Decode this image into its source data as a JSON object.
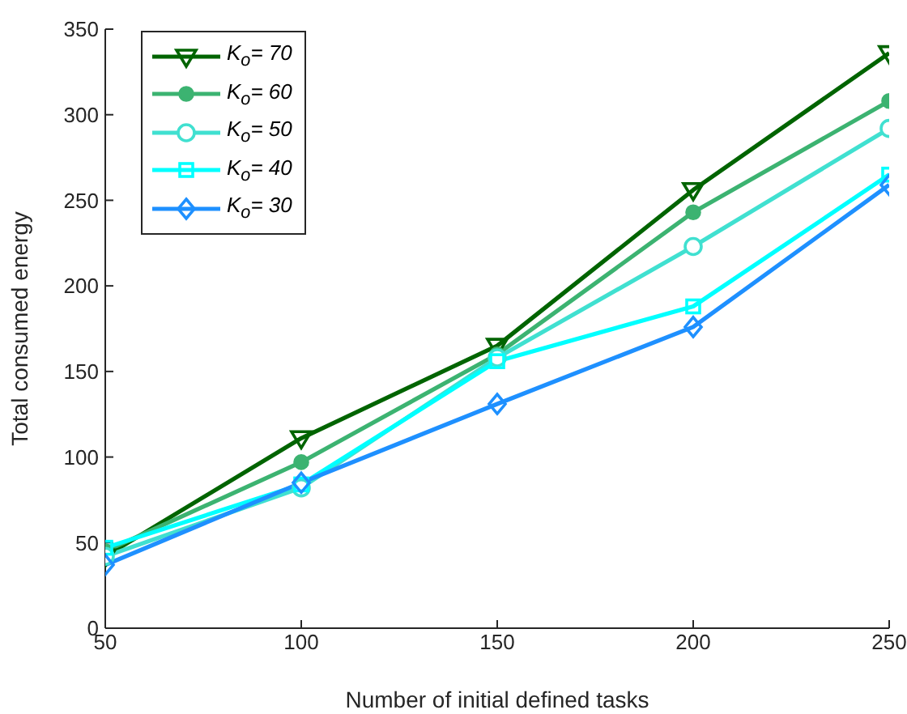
{
  "chart_data": {
    "type": "line",
    "xlabel": "Number of initial defined tasks",
    "ylabel": "Total consumed energy",
    "x": [
      50,
      100,
      150,
      200,
      250
    ],
    "xlim": [
      50,
      250
    ],
    "xticks": [
      50,
      100,
      150,
      200,
      250
    ],
    "ylim": [
      0,
      350
    ],
    "yticks": [
      0,
      50,
      100,
      150,
      200,
      250,
      300,
      350
    ],
    "grid": false,
    "legend": "top left",
    "line_style": "solid",
    "series": [
      {
        "name": "K$_{o}$= 70",
        "color": "#006400",
        "marker": "triangle",
        "values": [
          42,
          111,
          165,
          256,
          336
        ]
      },
      {
        "name": "K$_{o}$= 60",
        "color": "#3cb371",
        "marker": "circle",
        "values": [
          45,
          97,
          160,
          243,
          308
        ]
      },
      {
        "name": "K$_{o}$= 50",
        "color": "#40e0d0",
        "marker": "circle",
        "values": [
          42,
          82,
          158,
          223,
          292
        ]
      },
      {
        "name": "K$_{o}$= 40",
        "color": "#00ffff",
        "marker": "square",
        "values": [
          47,
          84,
          156,
          188,
          265
        ]
      },
      {
        "name": "K$_{o}$= 30",
        "color": "#1e90ff",
        "marker": "diamond",
        "values": [
          37,
          85,
          131,
          176,
          259
        ]
      }
    ]
  }
}
